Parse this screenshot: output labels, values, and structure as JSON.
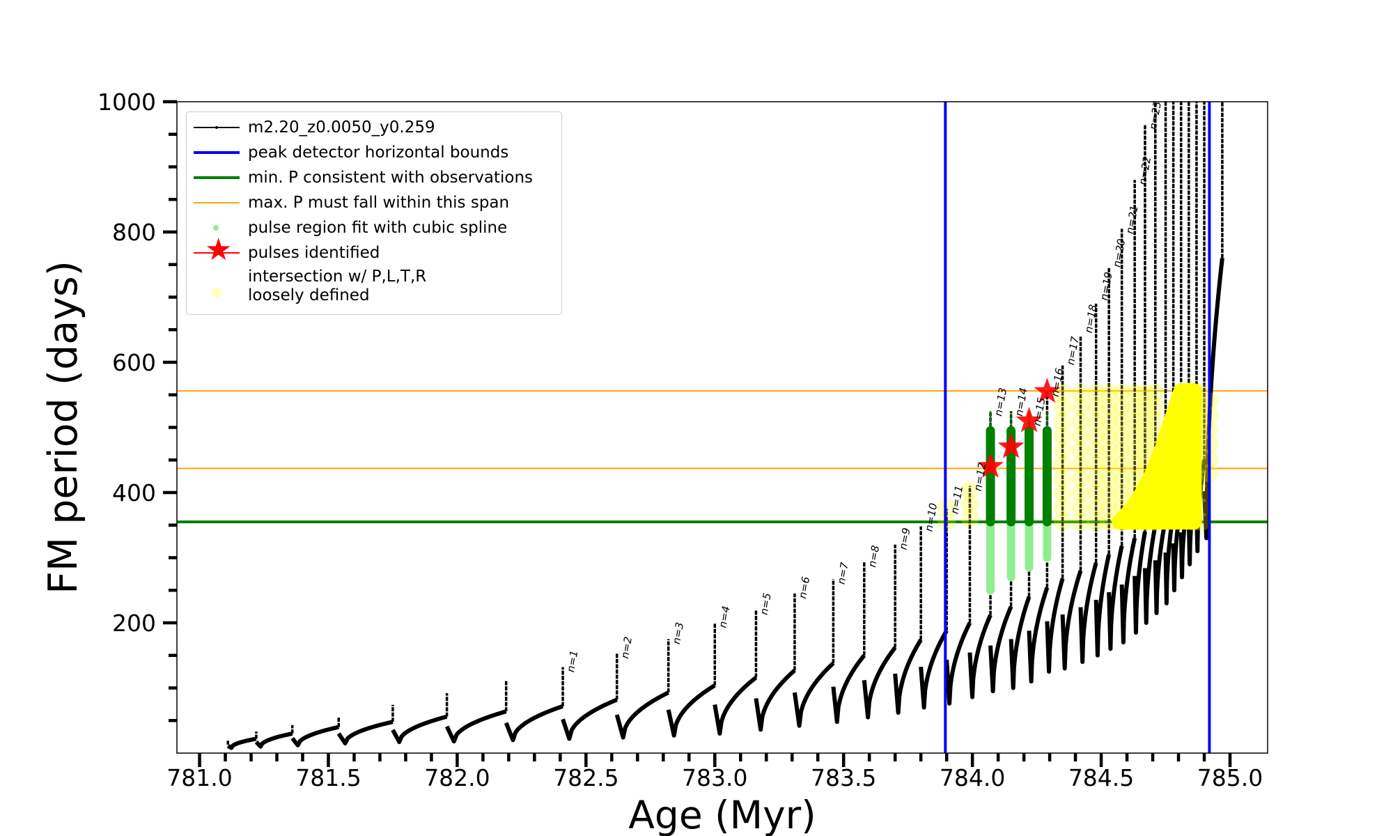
{
  "chart_data": {
    "type": "line",
    "xlabel": "Age (Myr)",
    "ylabel": "FM period (days)",
    "xlim": [
      780.912,
      785.146
    ],
    "ylim": [
      0,
      1000
    ],
    "xticks": [
      781.0,
      781.5,
      782.0,
      782.5,
      783.0,
      783.5,
      784.0,
      784.5,
      785.0
    ],
    "xtick_labels": [
      "781.0",
      "781.5",
      "782.0",
      "782.5",
      "783.0",
      "783.5",
      "784.0",
      "784.5",
      "785.0"
    ],
    "yticks": [
      200,
      400,
      600,
      800,
      1000
    ],
    "ytick_labels": [
      "200",
      "400",
      "600",
      "800",
      "1000"
    ],
    "grid": false,
    "legend_position": "top-left",
    "legend": [
      {
        "label": "m2.20_z0.0050_y0.259",
        "color": "#000000"
      },
      {
        "label": "peak detector horizontal bounds",
        "color": "#0000ff"
      },
      {
        "label": "min. P consistent with observations",
        "color": "#008000"
      },
      {
        "label": "max. P must fall within this span",
        "color": "#ffa500"
      },
      {
        "label": "pulse region fit with cubic spline",
        "color": "#90ee90"
      },
      {
        "label": "pulses identified",
        "color": "#ff0000"
      },
      {
        "label": "intersection w/ P,L,T,R",
        "label2": "loosely defined",
        "color": "#ffff80"
      }
    ],
    "vertical_bounds": [
      783.895,
      784.92
    ],
    "min_P": 355,
    "max_P_span": [
      437,
      556
    ],
    "pulses": [
      {
        "age": 781.11,
        "pre": 13,
        "peak": 19,
        "trough": 8,
        "n": ""
      },
      {
        "age": 781.22,
        "pre": 22,
        "peak": 33,
        "trough": 10,
        "n": ""
      },
      {
        "age": 781.36,
        "pre": 30,
        "peak": 43,
        "trough": 12,
        "n": ""
      },
      {
        "age": 781.54,
        "pre": 40,
        "peak": 56,
        "trough": 15,
        "n": ""
      },
      {
        "age": 781.75,
        "pre": 48,
        "peak": 74,
        "trough": 17,
        "n": ""
      },
      {
        "age": 781.96,
        "pre": 56,
        "peak": 92,
        "trough": 18,
        "n": ""
      },
      {
        "age": 782.19,
        "pre": 64,
        "peak": 111,
        "trough": 20,
        "n": ""
      },
      {
        "age": 782.41,
        "pre": 72,
        "peak": 132,
        "trough": 22,
        "n": "n=1"
      },
      {
        "age": 782.62,
        "pre": 82,
        "peak": 153,
        "trough": 24,
        "n": "n=2"
      },
      {
        "age": 782.82,
        "pre": 93,
        "peak": 175,
        "trough": 27,
        "n": "n=3"
      },
      {
        "age": 783.0,
        "pre": 104,
        "peak": 200,
        "trough": 30,
        "n": "n=4"
      },
      {
        "age": 783.16,
        "pre": 116,
        "peak": 220,
        "trough": 36,
        "n": "n=5"
      },
      {
        "age": 783.31,
        "pre": 127,
        "peak": 245,
        "trough": 42,
        "n": "n=6"
      },
      {
        "age": 783.46,
        "pre": 138,
        "peak": 267,
        "trough": 48,
        "n": "n=7"
      },
      {
        "age": 783.58,
        "pre": 150,
        "peak": 293,
        "trough": 55,
        "n": "n=8"
      },
      {
        "age": 783.7,
        "pre": 162,
        "peak": 320,
        "trough": 62,
        "n": "n=9"
      },
      {
        "age": 783.8,
        "pre": 174,
        "peak": 348,
        "trough": 70,
        "n": "n=10"
      },
      {
        "age": 783.9,
        "pre": 188,
        "peak": 375,
        "trough": 76,
        "n": "n=11"
      },
      {
        "age": 783.99,
        "pre": 200,
        "peak": 410,
        "trough": 86,
        "n": "n=12"
      },
      {
        "age": 784.07,
        "pre": 212,
        "peak": 525,
        "trough": 95,
        "n": "n=13"
      },
      {
        "age": 784.15,
        "pre": 225,
        "peak": 525,
        "trough": 100,
        "n": "n=14"
      },
      {
        "age": 784.22,
        "pre": 240,
        "peak": 510,
        "trough": 110,
        "n": "n=15"
      },
      {
        "age": 784.29,
        "pre": 254,
        "peak": 555,
        "trough": 125,
        "n": "n=16"
      },
      {
        "age": 784.35,
        "pre": 268,
        "peak": 595,
        "trough": 130,
        "n": "n=17"
      },
      {
        "age": 784.42,
        "pre": 280,
        "peak": 640,
        "trough": 140,
        "n": "n=18"
      },
      {
        "age": 784.48,
        "pre": 292,
        "peak": 690,
        "trough": 150,
        "n": "n=19"
      },
      {
        "age": 784.53,
        "pre": 305,
        "peak": 745,
        "trough": 160,
        "n": "n=20"
      },
      {
        "age": 784.58,
        "pre": 318,
        "peak": 805,
        "trough": 170,
        "n": "n=21"
      },
      {
        "age": 784.63,
        "pre": 330,
        "peak": 880,
        "trough": 185,
        "n": "n=22"
      },
      {
        "age": 784.67,
        "pre": 340,
        "peak": 965,
        "trough": 200,
        "n": "n=23"
      },
      {
        "age": 784.71,
        "pre": 350,
        "peak": 1000,
        "trough": 215,
        "n": ""
      },
      {
        "age": 784.75,
        "pre": 360,
        "peak": 1000,
        "trough": 230,
        "n": ""
      },
      {
        "age": 784.78,
        "pre": 370,
        "peak": 1000,
        "trough": 250,
        "n": ""
      },
      {
        "age": 784.81,
        "pre": 385,
        "peak": 1000,
        "trough": 270,
        "n": ""
      },
      {
        "age": 784.84,
        "pre": 400,
        "peak": 1000,
        "trough": 290,
        "n": ""
      },
      {
        "age": 784.87,
        "pre": 420,
        "peak": 1000,
        "trough": 310,
        "n": ""
      },
      {
        "age": 784.9,
        "pre": 450,
        "peak": 1000,
        "trough": 330,
        "n": ""
      },
      {
        "age": 784.97,
        "pre": 760,
        "peak": 1000,
        "trough": 760,
        "n": ""
      }
    ],
    "pulses_identified": [
      {
        "age": 784.07,
        "P": 440
      },
      {
        "age": 784.15,
        "P": 470
      },
      {
        "age": 784.22,
        "P": 510
      },
      {
        "age": 784.29,
        "P": 555
      }
    ],
    "spline_regions": [
      {
        "age": 784.07,
        "low": 250,
        "high": 495
      },
      {
        "age": 784.15,
        "low": 270,
        "high": 495
      },
      {
        "age": 784.22,
        "low": 285,
        "high": 495
      },
      {
        "age": 784.29,
        "low": 300,
        "high": 495
      }
    ],
    "intersection_regions": [
      {
        "age": 783.9,
        "low": 355,
        "high": 378
      },
      {
        "age": 783.99,
        "low": 360,
        "high": 405
      },
      {
        "age": 784.35,
        "low": 355,
        "high": 556
      },
      {
        "age": 784.42,
        "low": 355,
        "high": 556
      },
      {
        "age": 784.48,
        "low": 355,
        "high": 556
      },
      {
        "age": 784.53,
        "low": 355,
        "high": 556
      },
      {
        "age": 784.58,
        "low": 355,
        "high": 556
      },
      {
        "age": 784.63,
        "low": 355,
        "high": 556
      },
      {
        "age": 784.67,
        "low": 355,
        "high": 556
      },
      {
        "age": 784.71,
        "low": 355,
        "high": 556
      },
      {
        "age": 784.86,
        "low": 355,
        "high": 556
      },
      {
        "age": 784.89,
        "low": 355,
        "high": 556
      },
      {
        "age": 784.92,
        "low": 430,
        "high": 556
      }
    ],
    "intersection_dense": [
      [
        784.57,
        355
      ],
      [
        784.62,
        375
      ],
      [
        784.66,
        400
      ],
      [
        784.7,
        430
      ],
      [
        784.74,
        470
      ],
      [
        784.78,
        520
      ],
      [
        784.81,
        556
      ],
      [
        784.86,
        556
      ],
      [
        784.86,
        355
      ]
    ]
  }
}
